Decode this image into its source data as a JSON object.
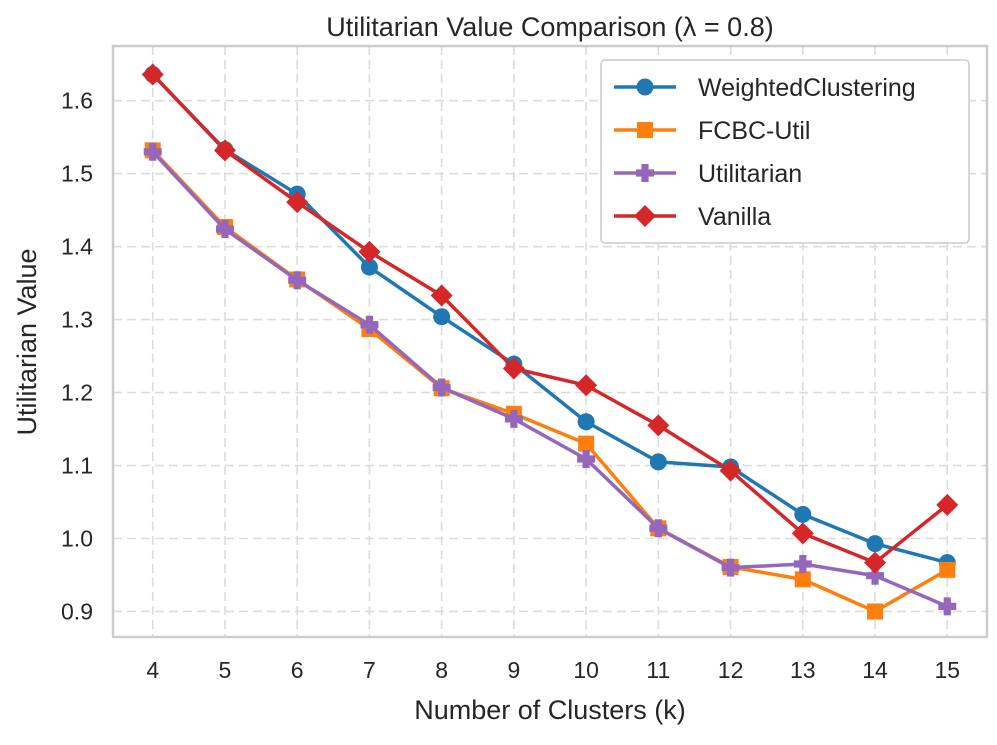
{
  "chart_data": {
    "type": "line",
    "title": "Utilitarian Value Comparison (λ = 0.8)",
    "xlabel": "Number of Clusters (k)",
    "ylabel": "Utilitarian Value",
    "x": [
      4,
      5,
      6,
      7,
      8,
      9,
      10,
      11,
      12,
      13,
      14,
      15
    ],
    "xlim": [
      3.45,
      15.55
    ],
    "ylim": [
      0.865,
      1.675
    ],
    "yticks": [
      0.9,
      1.0,
      1.1,
      1.2,
      1.3,
      1.4,
      1.5,
      1.6
    ],
    "ytick_labels": [
      "0.9",
      "1.0",
      "1.1",
      "1.2",
      "1.3",
      "1.4",
      "1.5",
      "1.6"
    ],
    "xtick_labels": [
      "4",
      "5",
      "6",
      "7",
      "8",
      "9",
      "10",
      "11",
      "12",
      "13",
      "14",
      "15"
    ],
    "grid": true,
    "legend_position": "top-right",
    "series": [
      {
        "name": "WeightedClustering",
        "color": "#1f77b4",
        "marker": "circle",
        "values": [
          1.636,
          1.533,
          1.472,
          1.372,
          1.304,
          1.239,
          1.16,
          1.105,
          1.098,
          1.033,
          0.993,
          0.967
        ]
      },
      {
        "name": "FCBC-Util",
        "color": "#ff7f0e",
        "marker": "square",
        "values": [
          1.532,
          1.427,
          1.355,
          1.287,
          1.206,
          1.171,
          1.13,
          1.014,
          0.961,
          0.944,
          0.9,
          0.957
        ]
      },
      {
        "name": "Utilitarian",
        "color": "#9467bd",
        "marker": "plus",
        "values": [
          1.53,
          1.424,
          1.354,
          1.293,
          1.207,
          1.164,
          1.109,
          1.014,
          0.96,
          0.965,
          0.949,
          0.907
        ]
      },
      {
        "name": "Vanilla",
        "color": "#d62728",
        "marker": "diamond",
        "values": [
          1.636,
          1.532,
          1.461,
          1.393,
          1.333,
          1.233,
          1.21,
          1.155,
          1.093,
          1.007,
          0.967,
          1.046
        ]
      }
    ]
  }
}
